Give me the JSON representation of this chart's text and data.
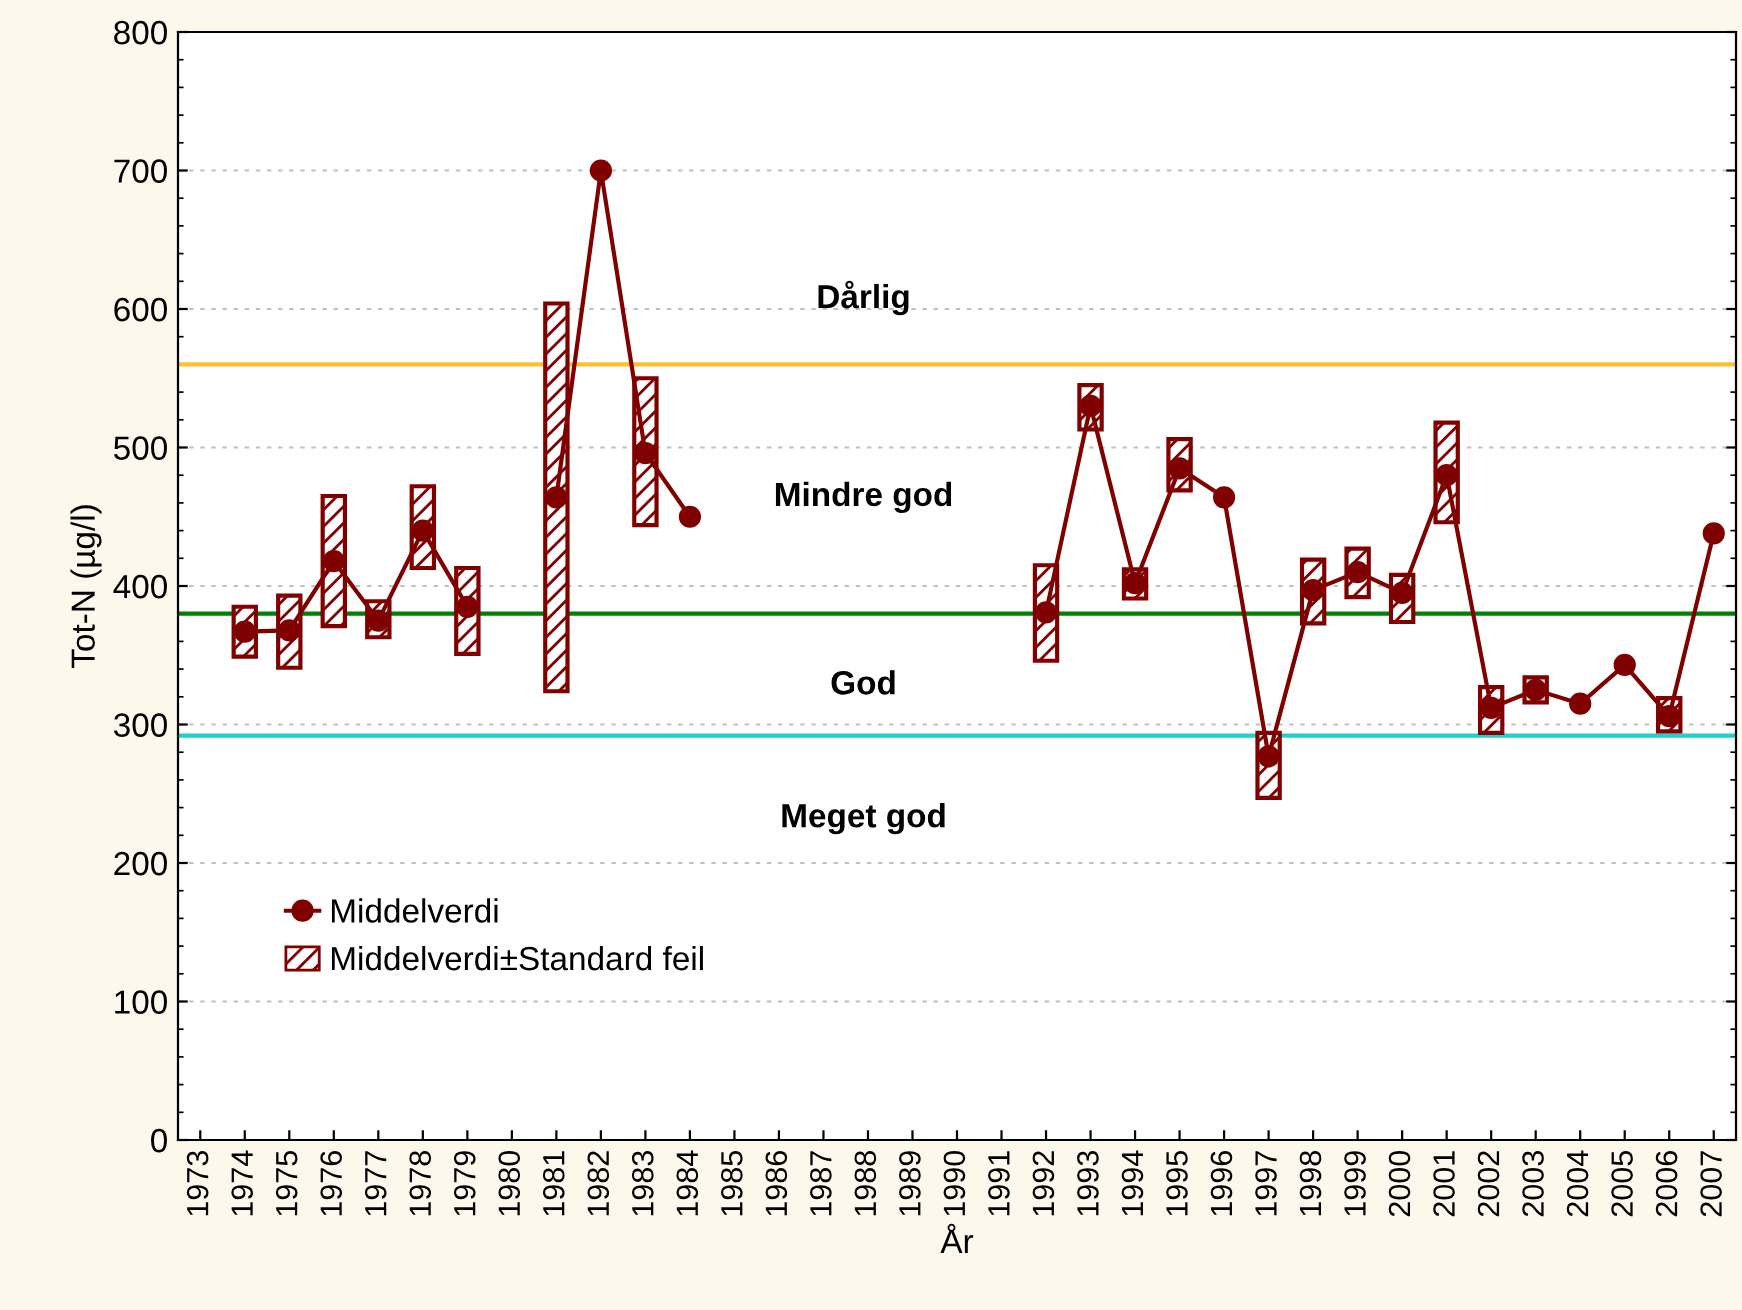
{
  "chart_data": {
    "type": "line",
    "xlabel": "År",
    "ylabel": "Tot-N (µg/l)",
    "categories": [
      "1973",
      "1974",
      "1975",
      "1976",
      "1977",
      "1978",
      "1979",
      "1980",
      "1981",
      "1982",
      "1983",
      "1984",
      "1985",
      "1986",
      "1987",
      "1988",
      "1989",
      "1990",
      "1991",
      "1992",
      "1993",
      "1994",
      "1995",
      "1996",
      "1997",
      "1998",
      "1999",
      "2000",
      "2001",
      "2002",
      "2003",
      "2004",
      "2005",
      "2006",
      "2007"
    ],
    "series": [
      {
        "name": "Middelverdi±Standard feil",
        "type": "bar",
        "color": "#800000",
        "base": [
          null,
          349,
          341,
          371,
          363,
          413,
          351,
          null,
          324,
          null,
          444,
          null,
          null,
          null,
          null,
          null,
          null,
          null,
          null,
          346,
          513,
          391,
          469,
          null,
          247,
          373,
          392,
          374,
          446,
          294,
          316,
          null,
          null,
          295,
          null
        ],
        "values": [
          null,
          36,
          52,
          94,
          26,
          59,
          62,
          null,
          280,
          null,
          106,
          null,
          null,
          null,
          null,
          null,
          null,
          null,
          null,
          69,
          32,
          21,
          37,
          null,
          47,
          46,
          35,
          34,
          72,
          33,
          18,
          null,
          null,
          24,
          null
        ]
      },
      {
        "name": "Middelverdi",
        "color": "#800000",
        "marker": "circle",
        "values": [
          null,
          367,
          368,
          418,
          375,
          440,
          385,
          null,
          464,
          700,
          496,
          450,
          null,
          null,
          null,
          null,
          null,
          null,
          null,
          381,
          530,
          402,
          485,
          464,
          277,
          397,
          410,
          395,
          480,
          312,
          325,
          315,
          343,
          306,
          438
        ]
      }
    ],
    "ylim": [
      0,
      800
    ],
    "yticks": [
      0,
      100,
      200,
      300,
      400,
      500,
      600,
      700,
      800
    ],
    "grid": "y",
    "legend": "lower left",
    "ref_lines": [
      {
        "axis": "y",
        "value": 560,
        "color": "#ffc030"
      },
      {
        "axis": "y",
        "value": 380,
        "color": "#008000"
      },
      {
        "axis": "y",
        "value": 292,
        "color": "#20d0d0"
      }
    ],
    "annotations": [
      "Dårlig",
      "Mindre god",
      "God",
      "Meget god"
    ]
  }
}
